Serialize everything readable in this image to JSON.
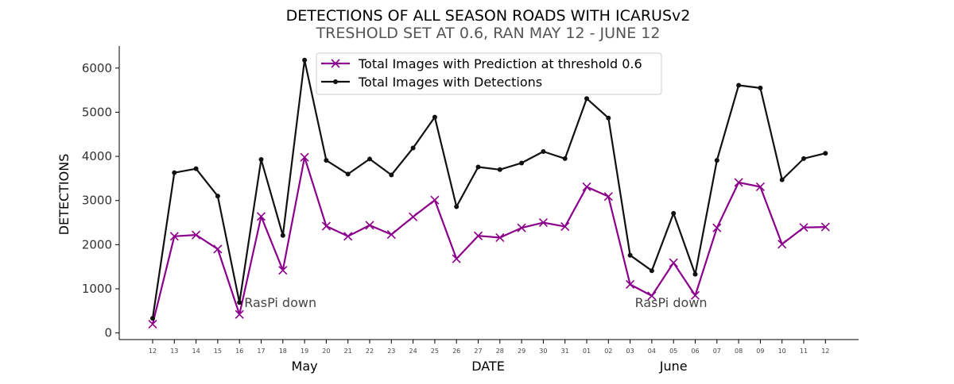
{
  "chart_data": {
    "type": "line",
    "title": "DETECTIONS OF ALL SEASON ROADS WITH ICARUSv2",
    "subtitle": "TRESHOLD SET AT 0.6, RAN MAY 12 - JUNE 12",
    "xlabel": "DATE",
    "ylabel": "DETECTIONS",
    "ylim": [
      -150,
      6500
    ],
    "yticks": [
      0,
      1000,
      2000,
      3000,
      4000,
      5000,
      6000
    ],
    "categories": [
      "12",
      "13",
      "14",
      "15",
      "16",
      "17",
      "18",
      "19",
      "20",
      "21",
      "22",
      "23",
      "24",
      "25",
      "26",
      "27",
      "28",
      "29",
      "30",
      "31",
      "01",
      "02",
      "03",
      "04",
      "05",
      "06",
      "07",
      "08",
      "09",
      "10",
      "11",
      "12"
    ],
    "month_labels": [
      {
        "label": "May",
        "category_index": 7
      },
      {
        "label": "June",
        "category_index": 24
      }
    ],
    "series": [
      {
        "name": "Total Images with Prediction at threshold 0.6",
        "color": "#8b008b",
        "marker": "x",
        "values": [
          200,
          2190,
          2220,
          1900,
          420,
          2640,
          1420,
          3980,
          2420,
          2190,
          2440,
          2230,
          2630,
          3010,
          1680,
          2200,
          2160,
          2380,
          2500,
          2410,
          3310,
          3090,
          1100,
          840,
          1590,
          850,
          2380,
          3410,
          3310,
          2010,
          2390,
          2400
        ]
      },
      {
        "name": "Total Images with Detections",
        "color": "#111111",
        "marker": "dot",
        "values": [
          330,
          3630,
          3720,
          3100,
          690,
          3930,
          2210,
          6180,
          3910,
          3600,
          3940,
          3580,
          4190,
          4890,
          2860,
          3760,
          3700,
          3850,
          4110,
          3950,
          5310,
          4870,
          1760,
          1410,
          2710,
          1330,
          3910,
          5610,
          5550,
          3470,
          3950,
          4070
        ]
      }
    ],
    "annotations": [
      {
        "text": "RasPi down",
        "category_index": 4,
        "y": 620
      },
      {
        "text": "RasPi down",
        "category_index": 22,
        "y": 620
      }
    ],
    "legend_position": "top-center",
    "grid": false
  }
}
